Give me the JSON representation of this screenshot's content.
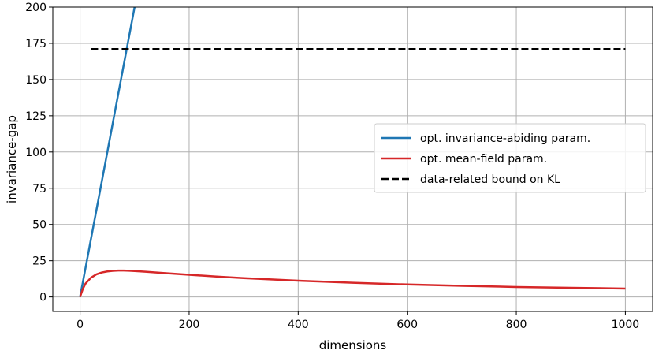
{
  "chart_data": {
    "type": "line",
    "title": "",
    "xlabel": "dimensions",
    "ylabel": "invariance-gap",
    "xlim": [
      -50,
      1050
    ],
    "ylim": [
      -10,
      200
    ],
    "xticks": [
      0,
      200,
      400,
      600,
      800,
      1000
    ],
    "yticks": [
      0,
      25,
      50,
      75,
      100,
      125,
      150,
      175,
      200
    ],
    "xtick_labels": [
      "0",
      "200",
      "400",
      "600",
      "800",
      "1000"
    ],
    "ytick_labels": [
      "0",
      "25",
      "50",
      "75",
      "100",
      "125",
      "150",
      "175",
      "200"
    ],
    "grid": true,
    "legend_position": "center-right",
    "series": [
      {
        "name": "opt. invariance-abiding param.",
        "color": "#1f77b4",
        "style": "solid",
        "x": [
          0,
          100
        ],
        "y": [
          0,
          200
        ]
      },
      {
        "name": "opt. mean-field param.",
        "color": "#d62728",
        "style": "solid",
        "x": [
          0,
          5,
          10,
          20,
          30,
          40,
          50,
          60,
          70,
          80,
          90,
          100,
          120,
          150,
          200,
          250,
          300,
          400,
          500,
          600,
          700,
          800,
          900,
          1000
        ],
        "y": [
          0,
          5.5,
          9.2,
          13.3,
          15.6,
          16.9,
          17.6,
          18.0,
          18.2,
          18.2,
          18.1,
          17.9,
          17.4,
          16.6,
          15.3,
          14.1,
          13.0,
          11.2,
          9.8,
          8.6,
          7.7,
          6.9,
          6.3,
          5.8
        ]
      },
      {
        "name": "data-related bound on KL",
        "color": "#000000",
        "style": "dashed",
        "x": [
          20,
          1000
        ],
        "y": [
          171,
          171
        ]
      }
    ]
  }
}
